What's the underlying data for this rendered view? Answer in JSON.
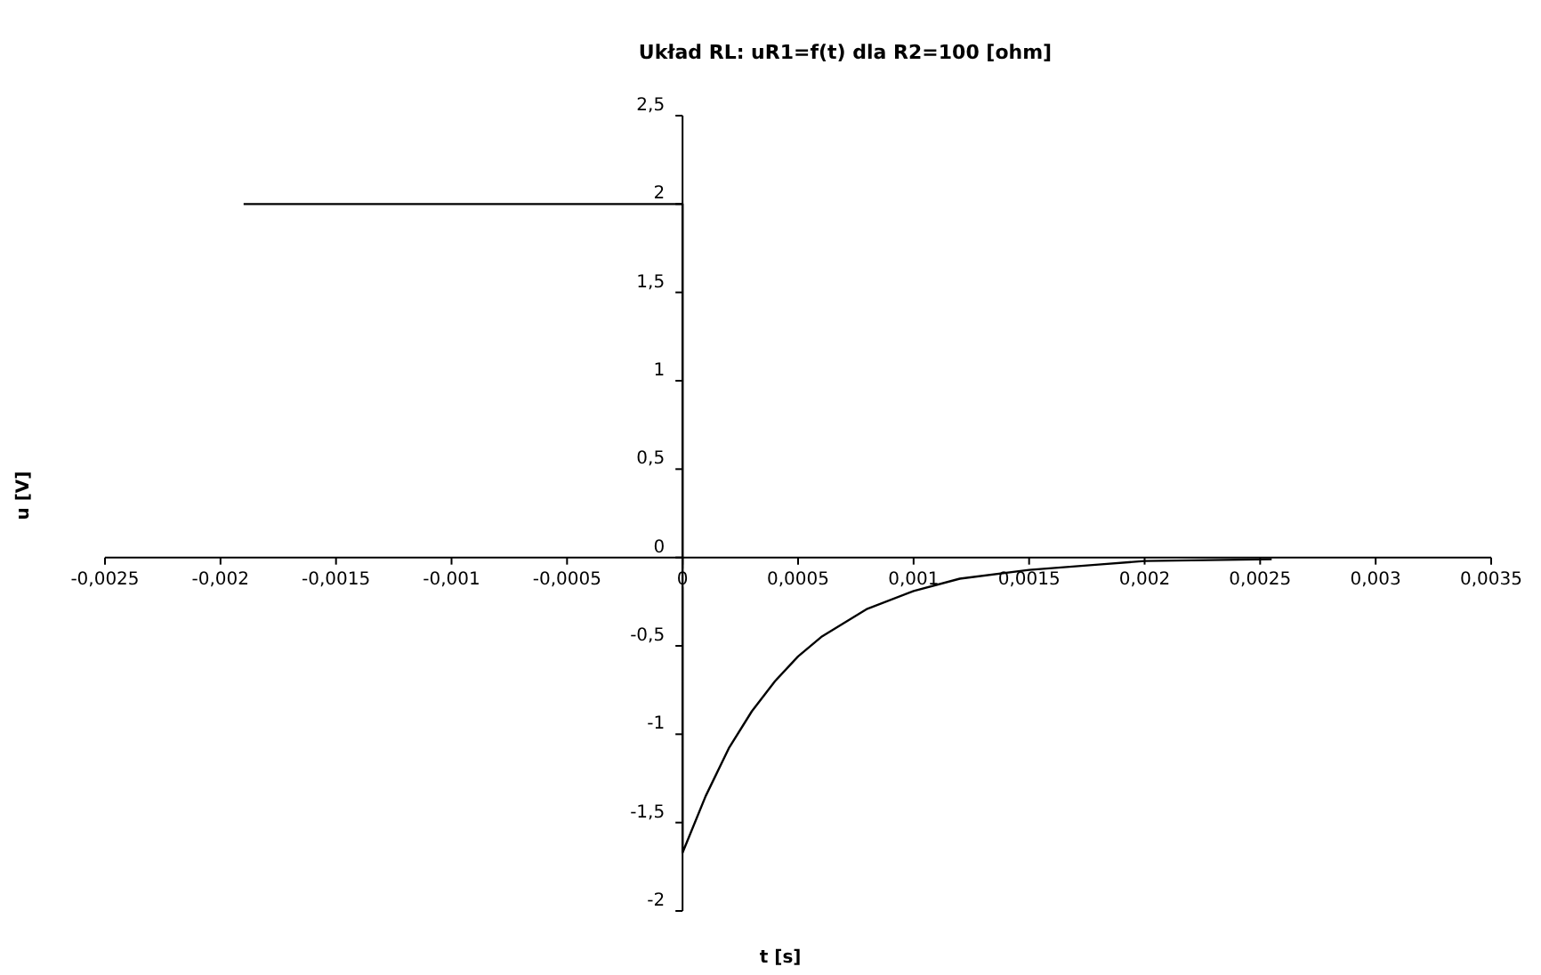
{
  "chart_data": {
    "type": "line",
    "title": "Układ RL: uR1=f(t) dla R2=100 [ohm]",
    "xlabel": "t [s]",
    "ylabel": "u [V]",
    "series": [
      {
        "color": "#000000",
        "x": [
          -0.0019,
          0,
          0,
          0.0001,
          0.0002,
          0.0003,
          0.0004,
          0.0005,
          0.0006,
          0.0008,
          0.001,
          0.0012,
          0.0015,
          0.0018,
          0.002,
          0.00255
        ],
        "values": [
          2,
          2,
          -1.67,
          -1.35,
          -1.08,
          -0.87,
          -0.7,
          -0.56,
          -0.45,
          -0.29,
          -0.19,
          -0.12,
          -0.07,
          -0.04,
          -0.02,
          -0.01
        ]
      }
    ],
    "xlim": [
      -0.0025,
      0.0035
    ],
    "xticks": [
      {
        "value": -0.0025,
        "label": "-0,0025"
      },
      {
        "value": -0.002,
        "label": "-0,002"
      },
      {
        "value": -0.0015,
        "label": "-0,0015"
      },
      {
        "value": -0.001,
        "label": "-0,001"
      },
      {
        "value": -0.0005,
        "label": "-0,0005"
      },
      0,
      {
        "value": 0.0005,
        "label": "0,0005"
      },
      {
        "value": 0.001,
        "label": "0,001"
      },
      {
        "value": 0.0015,
        "label": "0,0015"
      },
      {
        "value": 0.002,
        "label": "0,002"
      },
      {
        "value": 0.0025,
        "label": "0,0025"
      },
      {
        "value": 0.003,
        "label": "0,003"
      },
      {
        "value": 0.0035,
        "label": "0,0035"
      }
    ],
    "ylim": [
      -2,
      2.5
    ],
    "yticks": [
      -2,
      {
        "value": -1.5,
        "label": "-1,5"
      },
      -1,
      {
        "value": -0.5,
        "label": "-0,5"
      },
      0,
      {
        "value": 0.5,
        "label": "0,5"
      },
      1,
      {
        "value": 1.5,
        "label": "1,5"
      },
      2,
      {
        "value": 2.5,
        "label": "2,5"
      }
    ],
    "grid": false,
    "marker": "none",
    "line_style": "solid"
  }
}
